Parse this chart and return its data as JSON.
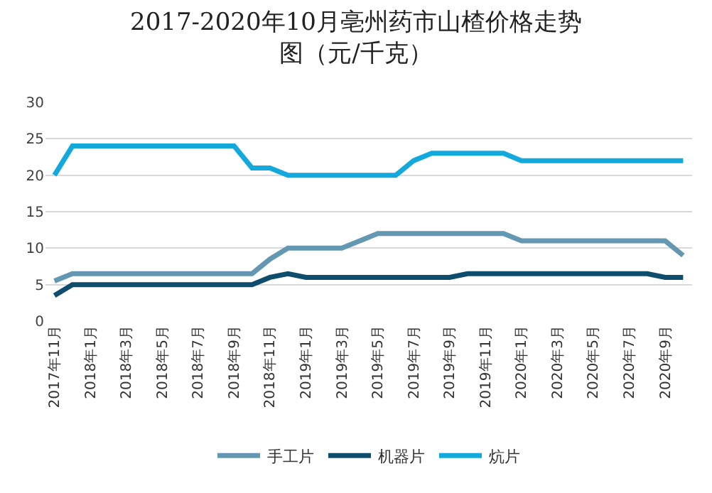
{
  "chart_data": {
    "type": "line",
    "title": "2017-2020年10月亳州药市山楂价格走势图（元/千克）",
    "categories": [
      "2017年11月",
      null,
      "2018年1月",
      null,
      "2018年3月",
      null,
      "2018年5月",
      null,
      "2018年7月",
      null,
      "2018年9月",
      null,
      "2018年11月",
      null,
      "2019年1月",
      null,
      "2019年3月",
      null,
      "2019年5月",
      null,
      "2019年7月",
      null,
      "2019年9月",
      null,
      "2019年11月",
      null,
      "2020年1月",
      null,
      "2020年3月",
      null,
      "2020年5月",
      null,
      "2020年7月",
      null,
      "2020年9月",
      null
    ],
    "series": [
      {
        "name": "手工片",
        "color": "#6497b1",
        "values": [
          5.5,
          6.5,
          6.5,
          6.5,
          6.5,
          6.5,
          6.5,
          6.5,
          6.5,
          6.5,
          6.5,
          6.5,
          8.5,
          10,
          10,
          10,
          10,
          11,
          12,
          12,
          12,
          12,
          12,
          12,
          12,
          12,
          11,
          11,
          11,
          11,
          11,
          11,
          11,
          11,
          11,
          9
        ]
      },
      {
        "name": "机器片",
        "color": "#0e4d6b",
        "values": [
          3.5,
          5,
          5,
          5,
          5,
          5,
          5,
          5,
          5,
          5,
          5,
          5,
          6,
          6.5,
          6,
          6,
          6,
          6,
          6,
          6,
          6,
          6,
          6,
          6.5,
          6.5,
          6.5,
          6.5,
          6.5,
          6.5,
          6.5,
          6.5,
          6.5,
          6.5,
          6.5,
          6,
          6
        ]
      },
      {
        "name": "炕片",
        "color": "#14a9dc",
        "values": [
          20,
          24,
          24,
          24,
          24,
          24,
          24,
          24,
          24,
          24,
          24,
          21,
          21,
          20,
          20,
          20,
          20,
          20,
          20,
          20,
          22,
          23,
          23,
          23,
          23,
          23,
          22,
          22,
          22,
          22,
          22,
          22,
          22,
          22,
          22,
          22
        ]
      }
    ],
    "ylim": [
      0,
      30
    ],
    "yticks": [
      0,
      5,
      10,
      15,
      20,
      25,
      30
    ],
    "grid": "y",
    "legend": "bottom",
    "marker": "none",
    "line_style": "solid"
  }
}
